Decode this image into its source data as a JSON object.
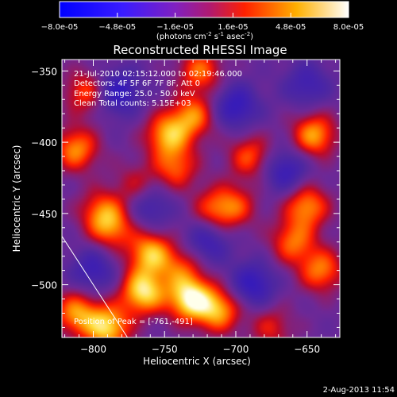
{
  "chart_data": {
    "type": "heatmap",
    "title": "Reconstructed RHESSI Image",
    "xlabel": "Heliocentric X (arcsec)",
    "ylabel": "Heliocentric Y (arcsec)",
    "xlim": [
      -822,
      -627
    ],
    "ylim": [
      -537,
      -342
    ],
    "x_ticks": [
      -800,
      -750,
      -700,
      -650
    ],
    "y_ticks": [
      -350,
      -400,
      -450,
      -500
    ],
    "colorbar": {
      "min": -8e-05,
      "max": 8e-05,
      "tick_values": [
        -8e-05,
        -4.8e-05,
        -1.6e-05,
        1.6e-05,
        4.8e-05,
        8e-05
      ],
      "tick_labels": [
        "-8.0e-05",
        "-4.8e-05",
        "-1.6e-05",
        "1.6e-05",
        "4.8e-05",
        "8.0e-05"
      ],
      "units_text": "(photons cm",
      "units_exp1": "-2",
      "units_mid": " s",
      "units_exp2": "-1",
      "units_tail": " asec",
      "units_exp3": "-2",
      "units_close": ")"
    },
    "annotations": [
      "21-Jul-2010 02:15:12.000 to 02:19:46.000",
      "Detectors: 4F 5F 6F 7F 8F, Att 0",
      "Energy Range: 25.0 - 50.0 keV",
      "Clean    Total counts: 5.15E+03"
    ],
    "peak_label": "Position of Peak = [-761,-491]",
    "limb_line": [
      [
        -822,
        -466
      ],
      [
        -776,
        -537
      ]
    ],
    "sources": [
      {
        "x": -732,
        "y": -510,
        "amp": 1.0
      },
      {
        "x": -765,
        "y": -505,
        "amp": 0.95
      },
      {
        "x": -712,
        "y": -518,
        "amp": 0.75
      },
      {
        "x": -790,
        "y": -530,
        "amp": 0.9
      },
      {
        "x": -812,
        "y": -520,
        "amp": 0.7
      },
      {
        "x": -760,
        "y": -478,
        "amp": 0.8
      },
      {
        "x": -738,
        "y": -488,
        "amp": 0.45
      },
      {
        "x": -748,
        "y": -395,
        "amp": 0.75
      },
      {
        "x": -730,
        "y": -382,
        "amp": 0.65
      },
      {
        "x": -742,
        "y": -418,
        "amp": 0.55
      },
      {
        "x": -787,
        "y": -460,
        "amp": 0.6
      },
      {
        "x": -795,
        "y": -448,
        "amp": 0.5
      },
      {
        "x": -812,
        "y": -405,
        "amp": 0.7
      },
      {
        "x": -805,
        "y": -365,
        "amp": 0.55
      },
      {
        "x": -725,
        "y": -350,
        "amp": 0.6
      },
      {
        "x": -645,
        "y": -395,
        "amp": 0.75
      },
      {
        "x": -650,
        "y": -445,
        "amp": 0.7
      },
      {
        "x": -690,
        "y": -410,
        "amp": 0.55
      },
      {
        "x": -660,
        "y": -470,
        "amp": 0.6
      },
      {
        "x": -640,
        "y": -490,
        "amp": 0.65
      },
      {
        "x": -715,
        "y": -447,
        "amp": 0.5
      },
      {
        "x": -700,
        "y": -445,
        "amp": 0.45
      },
      {
        "x": -770,
        "y": -430,
        "amp": 0.35
      },
      {
        "x": -675,
        "y": -530,
        "amp": 0.4
      },
      {
        "x": -783,
        "y": -365,
        "amp": -0.6
      },
      {
        "x": -700,
        "y": -375,
        "amp": -0.55
      },
      {
        "x": -665,
        "y": -420,
        "amp": -0.5
      },
      {
        "x": -720,
        "y": -470,
        "amp": -0.45
      },
      {
        "x": -688,
        "y": -500,
        "amp": -0.55
      },
      {
        "x": -760,
        "y": -445,
        "amp": -0.4
      },
      {
        "x": -800,
        "y": -490,
        "amp": -0.45
      },
      {
        "x": -650,
        "y": -360,
        "amp": -0.4
      }
    ]
  },
  "footer": {
    "timestamp": "2-Aug-2013 11:54"
  }
}
